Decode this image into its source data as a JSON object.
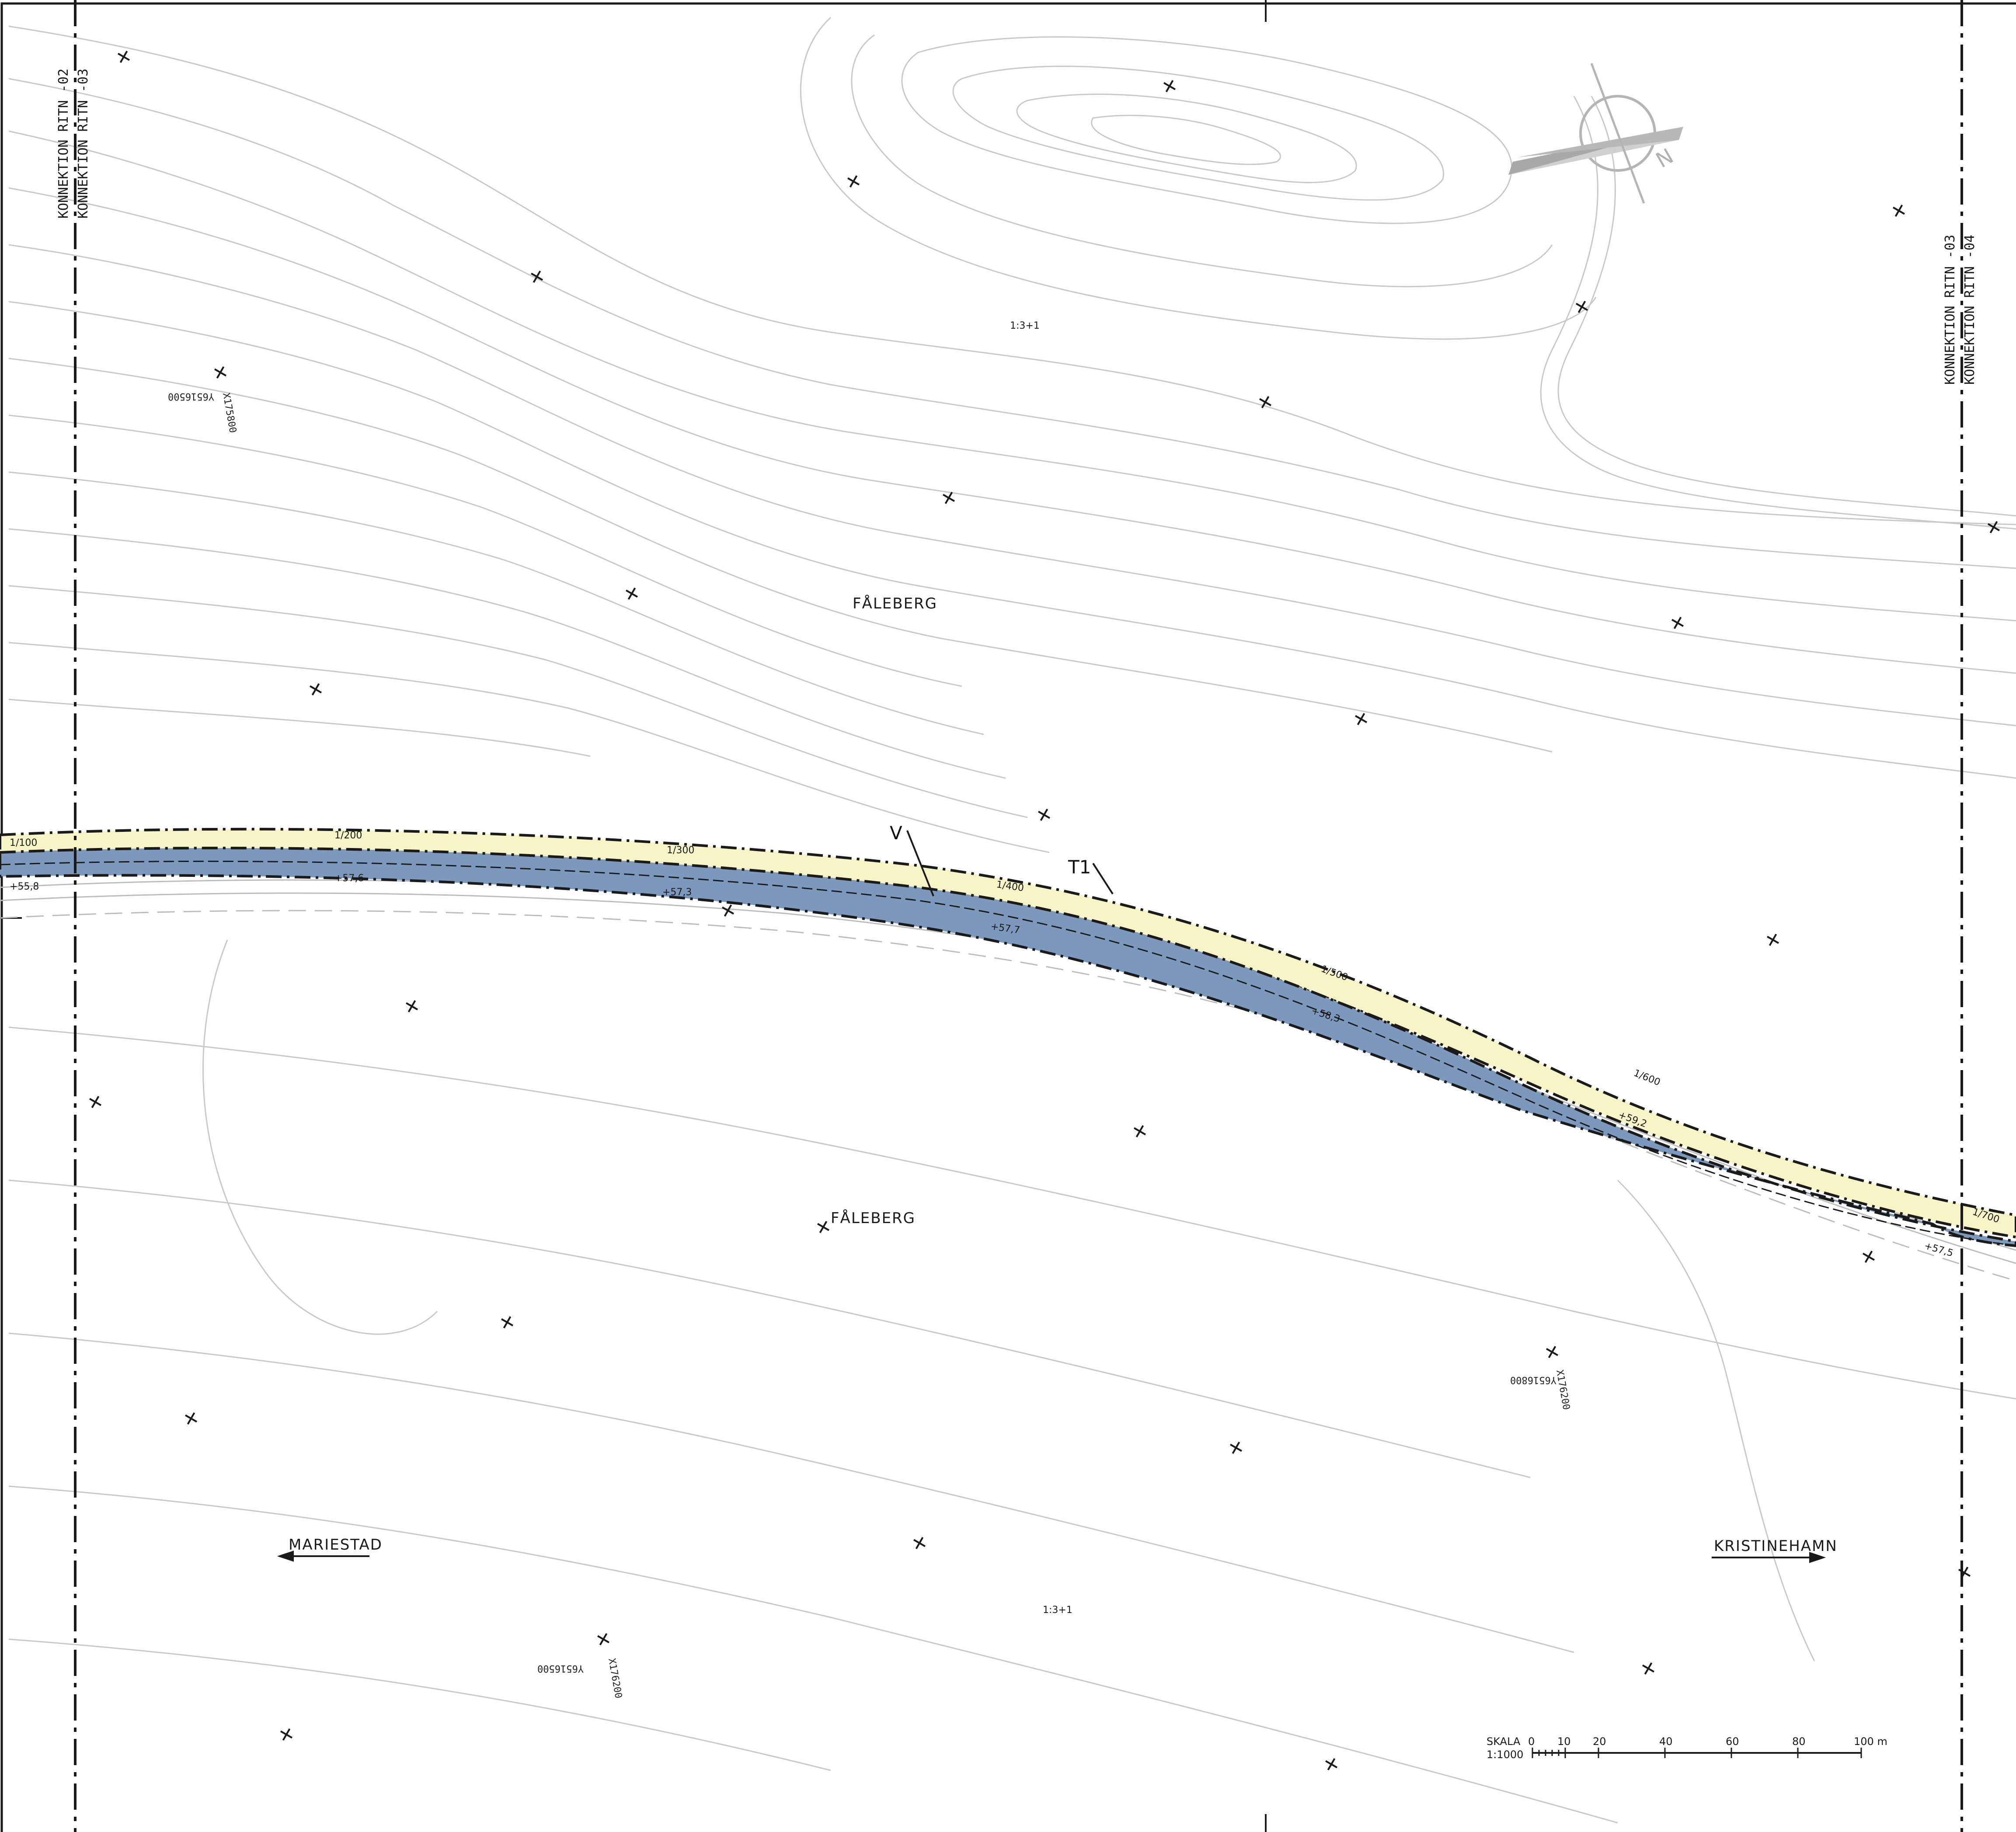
{
  "colors": {
    "road_surface": "#7c98bd",
    "verge": "#f7f5c8",
    "contour": "#c9c9c9",
    "linework": "#1a1a1a"
  },
  "match_lines": {
    "left_a": "KONNEKTION RITN -02",
    "left_b": "KONNEKTION RITN -03",
    "right_a": "KONNEKTION RITN -03",
    "right_b": "KONNEKTION RITN -04"
  },
  "place_names": {
    "north": "FÅLEBERG",
    "south": "FÅLEBERG"
  },
  "directions": {
    "left": "MARIESTAD",
    "right": "KRISTINEHAMN"
  },
  "road_labels": {
    "v": "V",
    "t1": "T1"
  },
  "chainage_labels": [
    "1/100",
    "1/200",
    "1/300",
    "1/400",
    "1/500",
    "1/600",
    "1/700"
  ],
  "elevations": [
    "+55,8",
    "+57,6",
    "+57,3",
    "+57,7",
    "+58,3",
    "+59,2",
    "+57,5"
  ],
  "slope_notes": {
    "upper": "1:3+1",
    "lower": "1:3+1"
  },
  "grid_coords": [
    {
      "y": "Y6516500",
      "x": "X175800"
    },
    {
      "y": "Y6516800",
      "x": "X176200"
    },
    {
      "y": "Y6516500",
      "x": "X176200"
    }
  ],
  "scale_bar": {
    "title": "SKALA",
    "ratio": "1:1000",
    "ticks": [
      "0",
      "10",
      "20",
      "40",
      "60",
      "80",
      "100 m"
    ]
  },
  "north_arrow": "N",
  "icons": [
    "north-arrow-icon",
    "arrow-left-icon",
    "arrow-right-icon",
    "grid-cross-icon"
  ]
}
